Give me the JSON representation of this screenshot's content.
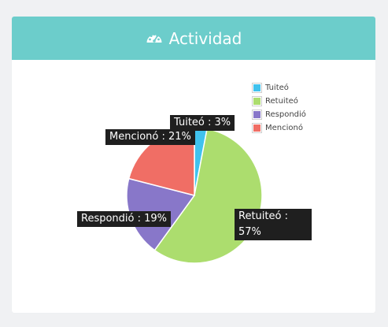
{
  "header": {
    "title": "Actividad",
    "icon": "dashboard-gauge-icon",
    "color": "#6ccdcb"
  },
  "chart_data": {
    "type": "pie",
    "labels": [
      "Tuiteó",
      "Retuiteó",
      "Respondió",
      "Mencionó"
    ],
    "values": [
      3,
      57,
      19,
      21
    ],
    "unit": "%",
    "colors": [
      "#40c2ee",
      "#acdd6e",
      "#8877c9",
      "#f06e65"
    ],
    "legend_position": "top-right",
    "data_labels": {
      "tuiteo": "Tuiteó : 3%",
      "retuiteo_line1": "Retuiteó :",
      "retuiteo_line2": "57%",
      "respondio": "Respondió : 19%",
      "menciono": "Mencionó : 21%"
    }
  }
}
